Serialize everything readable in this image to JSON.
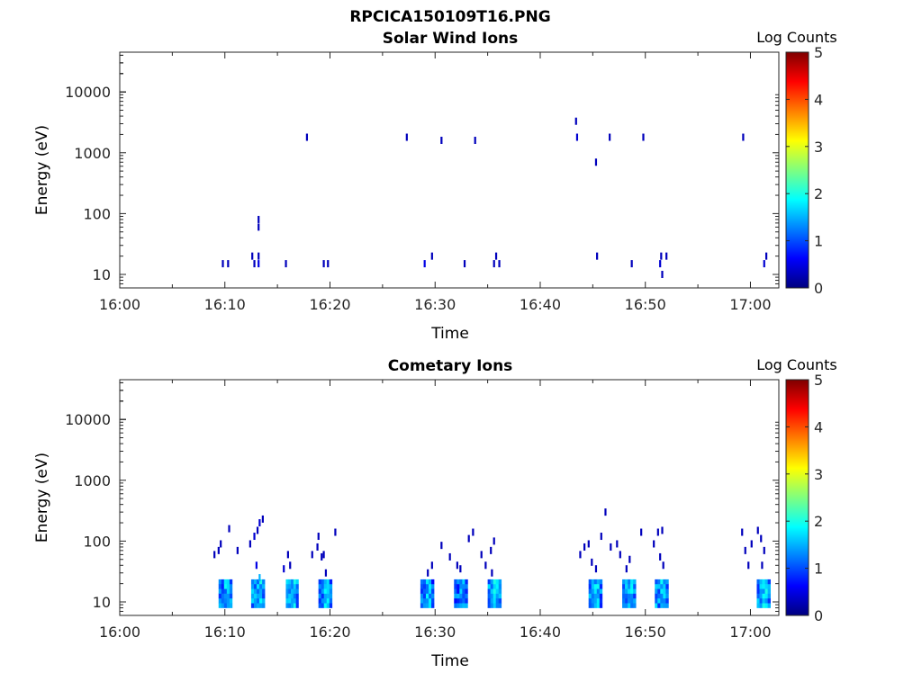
{
  "figure": {
    "title": "RPCICA150109T16.PNG"
  },
  "colormap": {
    "name": "jet",
    "stops": [
      "#00007f",
      "#0000ff",
      "#007fff",
      "#00ffff",
      "#7fff7f",
      "#ffff00",
      "#ff7f00",
      "#ff0000",
      "#7f0000"
    ]
  },
  "chart_data": [
    {
      "type": "heatmap",
      "title": "Solar Wind Ions",
      "xlabel": "Time",
      "ylabel": "Energy (eV)",
      "x_ticks": [
        "16:00",
        "16:10",
        "16:20",
        "16:30",
        "16:40",
        "16:50",
        "17:00"
      ],
      "y_ticks": [
        "10",
        "100",
        "1000",
        "10000"
      ],
      "y_scale": "log",
      "colorbar": {
        "label": "Log Counts",
        "ticks": [
          "0",
          "1",
          "2",
          "3",
          "4",
          "5"
        ],
        "range": [
          0,
          5
        ]
      },
      "cells": [
        [
          9.8,
          15,
          0.3
        ],
        [
          10.3,
          15,
          0.3
        ],
        [
          12.6,
          20,
          0.3
        ],
        [
          12.8,
          15,
          0.3
        ],
        [
          13.2,
          15,
          0.5
        ],
        [
          13.2,
          20,
          0.3
        ],
        [
          13.2,
          60,
          0.3
        ],
        [
          13.2,
          80,
          0.3
        ],
        [
          15.8,
          15,
          0.3
        ],
        [
          17.8,
          1800,
          0.3
        ],
        [
          19.4,
          15,
          0.3
        ],
        [
          19.8,
          15,
          0.3
        ],
        [
          27.3,
          1800,
          0.3
        ],
        [
          29.0,
          15,
          0.5
        ],
        [
          29.7,
          20,
          0.3
        ],
        [
          30.6,
          1600,
          0.3
        ],
        [
          32.8,
          15,
          0.3
        ],
        [
          33.8,
          1600,
          0.3
        ],
        [
          35.6,
          15,
          0.3
        ],
        [
          35.8,
          20,
          0.3
        ],
        [
          36.1,
          15,
          0.3
        ],
        [
          43.4,
          3300,
          0.3
        ],
        [
          43.5,
          1800,
          0.4
        ],
        [
          45.3,
          700,
          0.3
        ],
        [
          45.4,
          20,
          0.3
        ],
        [
          46.6,
          1800,
          0.3
        ],
        [
          48.7,
          15,
          0.3
        ],
        [
          49.8,
          1800,
          0.3
        ],
        [
          51.4,
          15,
          0.4
        ],
        [
          51.5,
          20,
          0.3
        ],
        [
          51.6,
          10,
          0.3
        ],
        [
          52.0,
          20,
          0.3
        ],
        [
          59.3,
          1800,
          0.3
        ],
        [
          61.3,
          15,
          0.4
        ],
        [
          61.5,
          20,
          0.3
        ]
      ]
    },
    {
      "type": "heatmap",
      "title": "Cometary Ions",
      "xlabel": "Time",
      "ylabel": "Energy (eV)",
      "x_ticks": [
        "16:00",
        "16:10",
        "16:20",
        "16:30",
        "16:40",
        "16:50",
        "17:00"
      ],
      "y_ticks": [
        "10",
        "100",
        "1000",
        "10000"
      ],
      "y_scale": "log",
      "colorbar": {
        "label": "Log Counts",
        "ticks": [
          "0",
          "1",
          "2",
          "3",
          "4",
          "5"
        ],
        "range": [
          0,
          5
        ]
      },
      "blocks": [
        {
          "t0": 9.4,
          "t1": 10.7,
          "level": 1.2
        },
        {
          "t0": 12.5,
          "t1": 13.8,
          "level": 1.3
        },
        {
          "t0": 15.8,
          "t1": 17.0,
          "level": 1.3
        },
        {
          "t0": 18.9,
          "t1": 20.2,
          "level": 1.2
        },
        {
          "t0": 28.6,
          "t1": 29.9,
          "level": 1.1
        },
        {
          "t0": 31.8,
          "t1": 33.1,
          "level": 1.1
        },
        {
          "t0": 35.0,
          "t1": 36.3,
          "level": 1.3
        },
        {
          "t0": 44.6,
          "t1": 45.9,
          "level": 1.2
        },
        {
          "t0": 47.8,
          "t1": 49.1,
          "level": 1.3
        },
        {
          "t0": 50.9,
          "t1": 52.2,
          "level": 1.3
        },
        {
          "t0": 60.6,
          "t1": 61.9,
          "level": 1.3
        }
      ],
      "cells": [
        [
          9.0,
          60,
          0.3
        ],
        [
          9.4,
          70,
          0.3
        ],
        [
          9.6,
          90,
          0.3
        ],
        [
          10.4,
          160,
          0.3
        ],
        [
          11.2,
          70,
          0.3
        ],
        [
          12.4,
          90,
          0.3
        ],
        [
          12.8,
          120,
          0.4
        ],
        [
          13.0,
          40,
          0.5
        ],
        [
          13.1,
          150,
          0.3
        ],
        [
          13.3,
          200,
          0.4
        ],
        [
          13.6,
          230,
          0.3
        ],
        [
          13.3,
          25,
          1.5
        ],
        [
          15.6,
          35,
          0.4
        ],
        [
          16.2,
          40,
          0.3
        ],
        [
          16.0,
          60,
          0.3
        ],
        [
          18.3,
          60,
          0.3
        ],
        [
          18.8,
          80,
          0.3
        ],
        [
          18.9,
          120,
          0.3
        ],
        [
          19.2,
          55,
          0.3
        ],
        [
          19.4,
          60,
          0.3
        ],
        [
          19.6,
          30,
          0.3
        ],
        [
          20.5,
          140,
          0.3
        ],
        [
          30.6,
          85,
          0.3
        ],
        [
          29.3,
          30,
          0.3
        ],
        [
          29.7,
          40,
          0.3
        ],
        [
          31.4,
          55,
          0.3
        ],
        [
          32.1,
          40,
          0.3
        ],
        [
          32.4,
          35,
          0.3
        ],
        [
          33.2,
          110,
          0.3
        ],
        [
          33.6,
          140,
          0.3
        ],
        [
          34.4,
          60,
          0.3
        ],
        [
          34.8,
          40,
          0.3
        ],
        [
          35.3,
          70,
          0.3
        ],
        [
          35.6,
          100,
          0.3
        ],
        [
          35.4,
          30,
          0.3
        ],
        [
          43.8,
          60,
          0.3
        ],
        [
          44.2,
          80,
          0.3
        ],
        [
          44.6,
          90,
          0.3
        ],
        [
          45.8,
          120,
          0.3
        ],
        [
          46.2,
          300,
          0.3
        ],
        [
          44.9,
          45,
          0.3
        ],
        [
          45.3,
          35,
          0.3
        ],
        [
          46.7,
          80,
          0.3
        ],
        [
          47.3,
          90,
          0.3
        ],
        [
          47.6,
          60,
          0.3
        ],
        [
          48.5,
          50,
          0.3
        ],
        [
          49.6,
          140,
          0.3
        ],
        [
          48.2,
          35,
          0.3
        ],
        [
          50.8,
          90,
          0.3
        ],
        [
          51.2,
          140,
          0.3
        ],
        [
          51.6,
          150,
          0.3
        ],
        [
          51.4,
          55,
          0.3
        ],
        [
          51.7,
          40,
          0.3
        ],
        [
          59.2,
          140,
          0.3
        ],
        [
          59.5,
          70,
          0.3
        ],
        [
          59.8,
          40,
          0.3
        ],
        [
          60.1,
          90,
          0.3
        ],
        [
          60.7,
          150,
          0.3
        ],
        [
          61.0,
          110,
          0.3
        ],
        [
          61.3,
          70,
          0.3
        ],
        [
          61.1,
          40,
          0.3
        ]
      ]
    }
  ]
}
